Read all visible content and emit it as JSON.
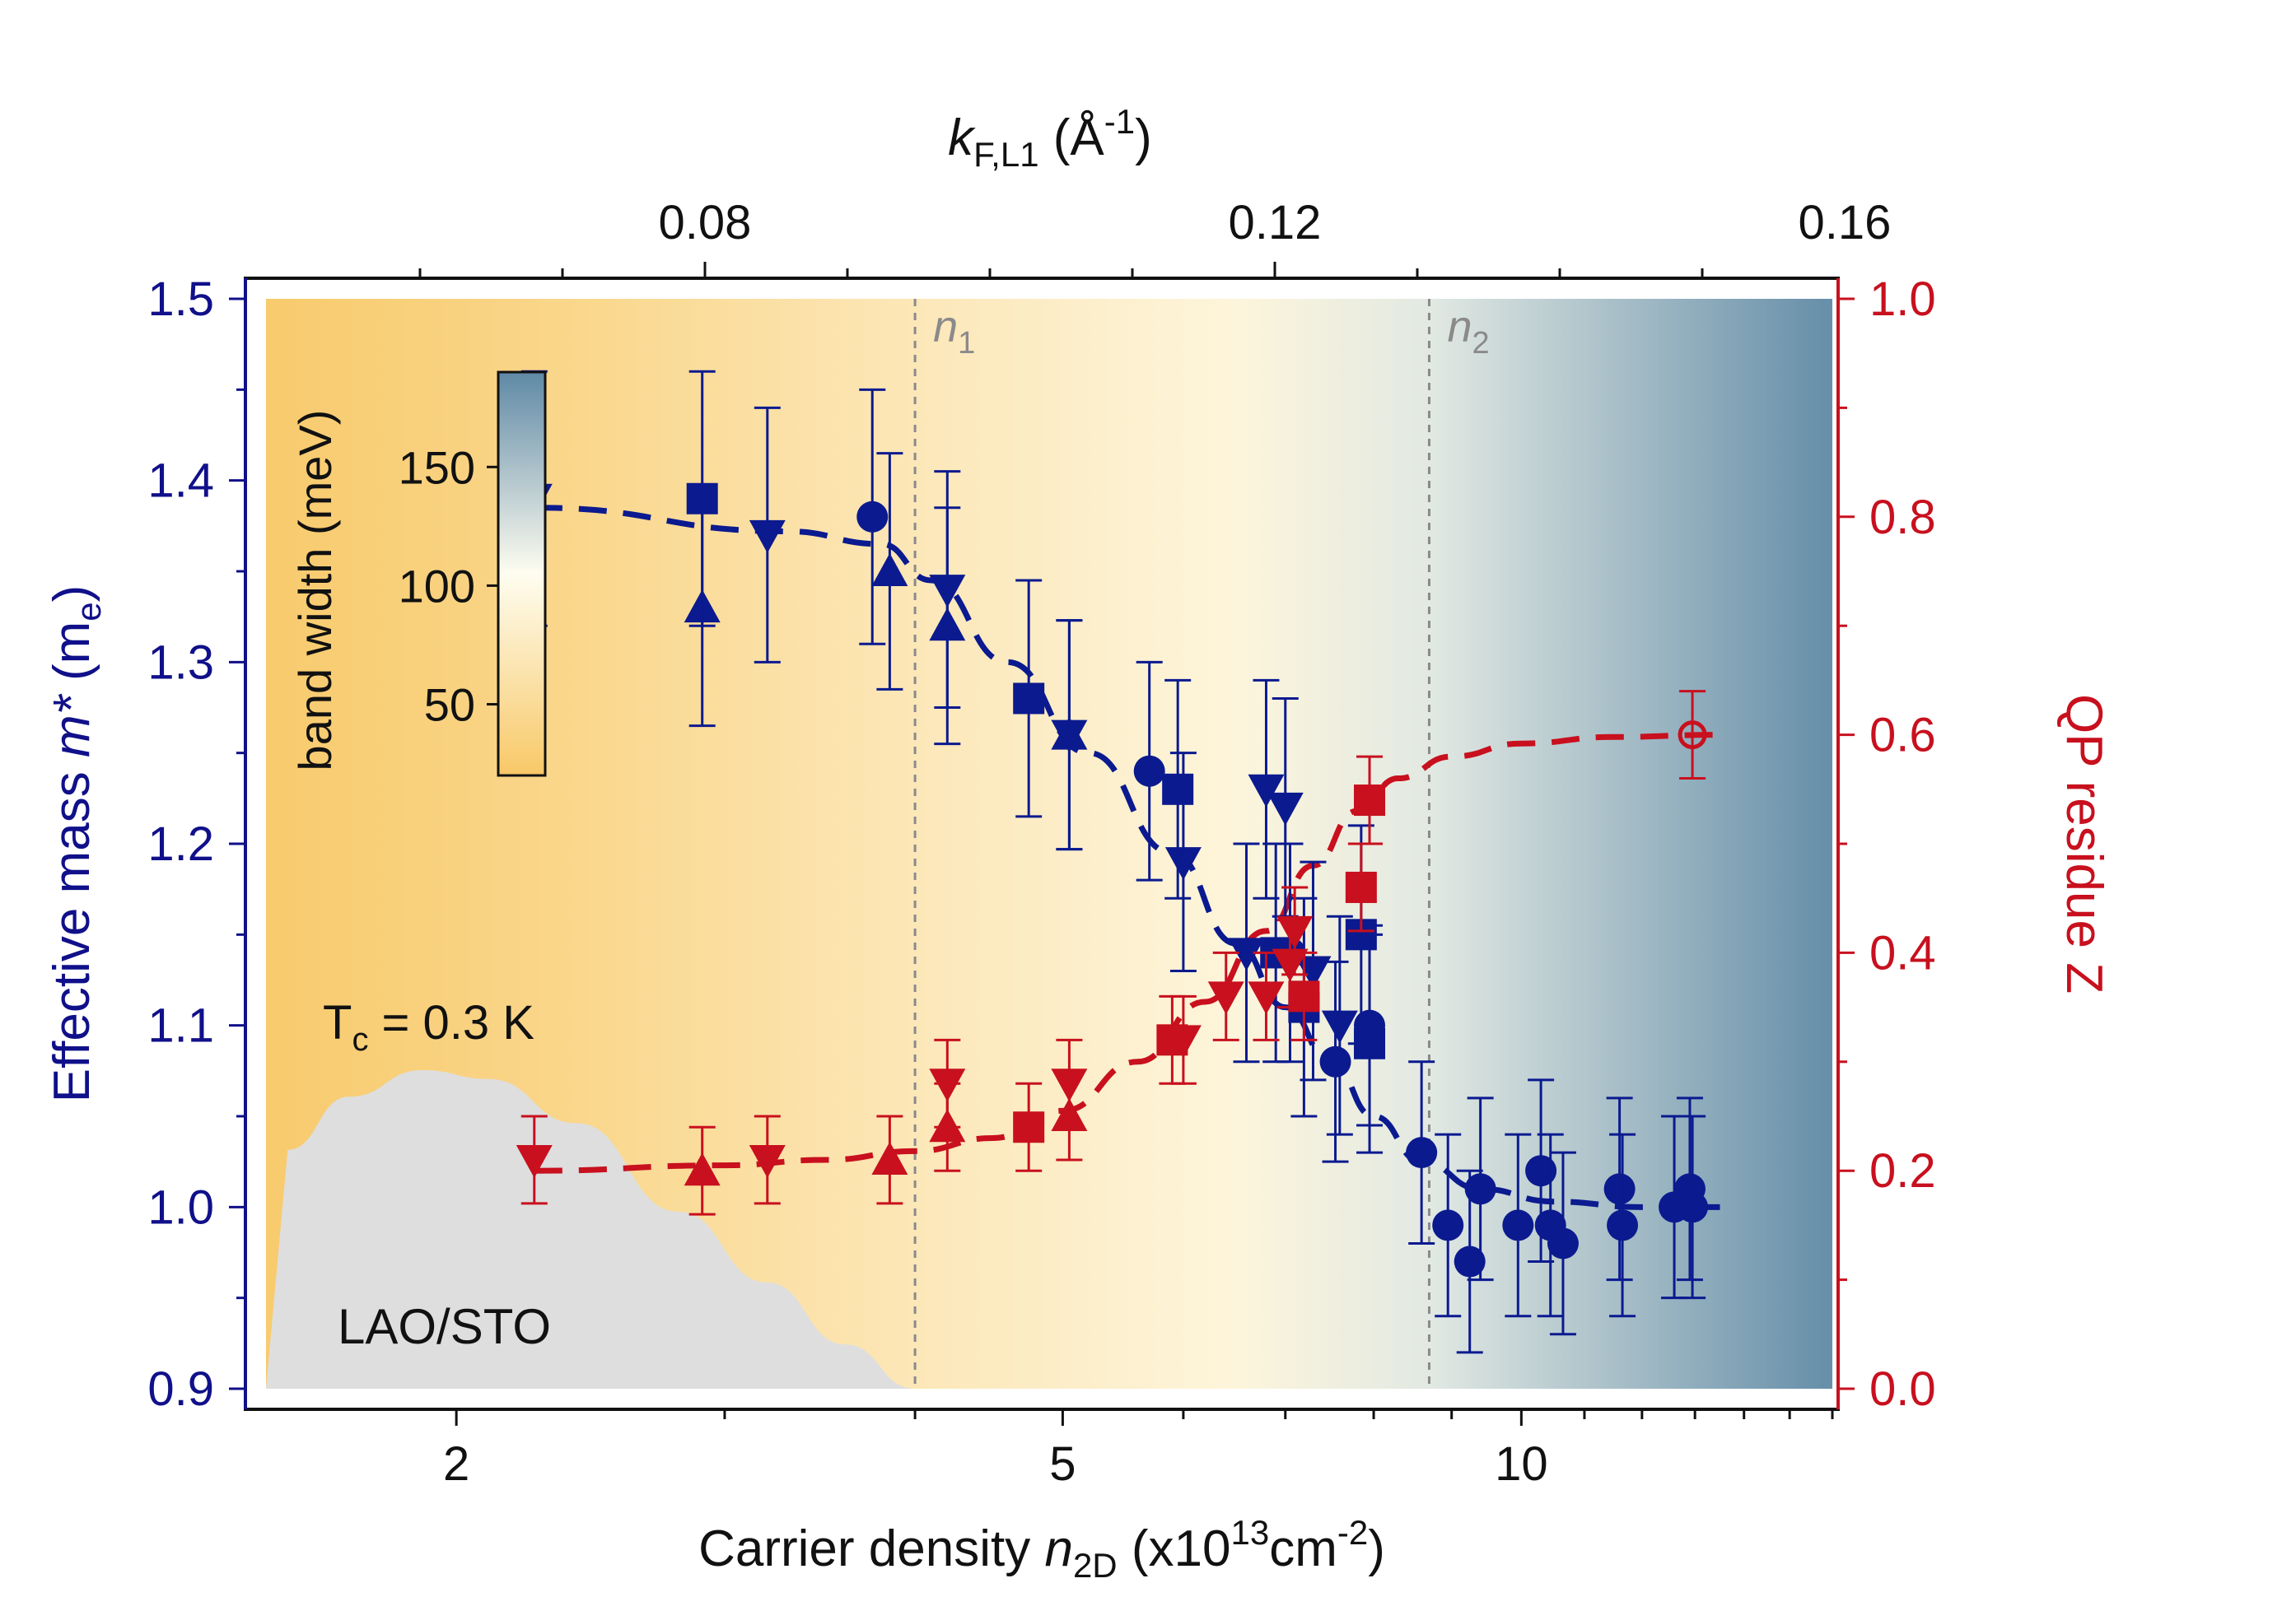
{
  "chart_data": {
    "type": "scatter",
    "title": "",
    "xlabel": {
      "prefix": "Carrier density ",
      "var": "n",
      "sub": "2D",
      "unit_a": " (x10",
      "sup": "13",
      "unit_b": "cm",
      "sup2": "-2",
      "end": ")"
    },
    "x_scale": "log",
    "xlim": [
      1.5,
      16
    ],
    "x_ticks": [
      2,
      5,
      10
    ],
    "x_ticks_labels": [
      "2",
      "5",
      "10"
    ],
    "top_axis": {
      "label": {
        "var": "k",
        "sub": "F,L1",
        "unit": " (Å",
        "sup": "-1",
        "end": ")"
      },
      "ticks": [
        0.08,
        0.12,
        0.16
      ],
      "tick_labels": [
        "0.08",
        "0.12",
        "0.16"
      ]
    },
    "ylabel_left": {
      "text": "Effective mass ",
      "var": "m*",
      "unit": " (m",
      "sub": "e",
      "end": ")"
    },
    "ylim_left": [
      0.9,
      1.5
    ],
    "y_left_ticks": [
      "0.9",
      "1.0",
      "1.1",
      "1.2",
      "1.3",
      "1.4",
      "1.5"
    ],
    "ylabel_right": "QP residue Z",
    "ylim_right": [
      0.0,
      1.0
    ],
    "y_right_ticks": [
      "0.0",
      "0.2",
      "0.4",
      "0.6",
      "0.8",
      "1.0"
    ],
    "vlines": [
      {
        "x": 4.0,
        "var": "n",
        "sub": "1"
      },
      {
        "x": 8.7,
        "var": "n",
        "sub": "2"
      }
    ],
    "annotations": {
      "tc": {
        "prefix": "T",
        "sub": "c",
        "rest": " = 0.3 K"
      },
      "sample": "LAO/STO"
    },
    "superconducting_dome": {
      "x": [
        1.55,
        1.7,
        1.9,
        2.1,
        2.4,
        2.8,
        3.2,
        3.6,
        4.0
      ],
      "tc_relative": [
        0.27,
        0.33,
        0.36,
        0.35,
        0.3,
        0.2,
        0.12,
        0.05,
        0.0
      ]
    },
    "colorbar": {
      "label": "band width (meV)",
      "ticks": [
        "50",
        "100",
        "150"
      ],
      "tick_values": [
        50,
        100,
        150
      ],
      "range": [
        20,
        190
      ],
      "colors": [
        "#f8c867",
        "#fefdf0",
        "#5f89a6"
      ]
    },
    "background_band_width": [
      {
        "x": 1.55,
        "value": 25
      },
      {
        "x": 2.5,
        "value": 45
      },
      {
        "x": 4.0,
        "value": 70
      },
      {
        "x": 6.5,
        "value": 92
      },
      {
        "x": 8.7,
        "value": 120
      },
      {
        "x": 15.8,
        "value": 185
      }
    ],
    "fits": [
      {
        "name": "mass fit",
        "axis": "left",
        "color": "#0b1a8f",
        "x": [
          2.25,
          3.3,
          3.8,
          4.1,
          4.6,
          5.2,
          5.9,
          6.5,
          7.0,
          7.5,
          8.0,
          8.6,
          9.4,
          10.5,
          12.0,
          13.5
        ],
        "y": [
          1.385,
          1.372,
          1.365,
          1.345,
          1.3,
          1.25,
          1.195,
          1.145,
          1.11,
          1.08,
          1.05,
          1.025,
          1.01,
          1.003,
          1.0,
          1.0
        ]
      },
      {
        "name": "Z fit",
        "axis": "right",
        "color": "#c8101e",
        "x": [
          2.25,
          3.0,
          3.5,
          4.0,
          4.5,
          5.0,
          5.6,
          6.2,
          6.8,
          7.3,
          7.8,
          8.3,
          9.0,
          10.0,
          11.5,
          13.5
        ],
        "y": [
          0.2,
          0.205,
          0.21,
          0.218,
          0.23,
          0.255,
          0.3,
          0.355,
          0.42,
          0.48,
          0.53,
          0.56,
          0.58,
          0.592,
          0.598,
          0.6
        ]
      }
    ],
    "series": [
      {
        "name": "m* (down triangles)",
        "axis": "left",
        "marker": "triangle-down",
        "color": "#0b1a8f",
        "points": [
          {
            "x": 2.25,
            "y": 1.39,
            "err": 0.07
          },
          {
            "x": 3.2,
            "y": 1.37,
            "err": 0.07
          },
          {
            "x": 4.2,
            "y": 1.34,
            "err": 0.065
          },
          {
            "x": 5.05,
            "y": 1.26,
            "err": 0.063
          },
          {
            "x": 6.0,
            "y": 1.19,
            "err": 0.06
          },
          {
            "x": 6.6,
            "y": 1.14,
            "err": 0.06
          },
          {
            "x": 6.8,
            "y": 1.23,
            "err": 0.06
          },
          {
            "x": 7.0,
            "y": 1.22,
            "err": 0.06
          },
          {
            "x": 7.3,
            "y": 1.13,
            "err": 0.06
          },
          {
            "x": 7.6,
            "y": 1.1,
            "err": 0.06
          }
        ]
      },
      {
        "name": "m* (up triangles)",
        "axis": "left",
        "marker": "triangle-up",
        "color": "#0b1a8f",
        "points": [
          {
            "x": 2.9,
            "y": 1.33,
            "err": 0.065
          },
          {
            "x": 3.85,
            "y": 1.35,
            "err": 0.065
          },
          {
            "x": 4.2,
            "y": 1.32,
            "err": 0.065
          },
          {
            "x": 5.05,
            "y": 1.26,
            "err": 0.063
          }
        ]
      },
      {
        "name": "m* (squares)",
        "axis": "left",
        "marker": "square",
        "color": "#0b1a8f",
        "points": [
          {
            "x": 2.9,
            "y": 1.39,
            "err": 0.07
          },
          {
            "x": 4.75,
            "y": 1.28,
            "err": 0.065
          },
          {
            "x": 5.95,
            "y": 1.23,
            "err": 0.06
          },
          {
            "x": 6.9,
            "y": 1.14,
            "err": 0.06
          },
          {
            "x": 7.2,
            "y": 1.11,
            "err": 0.06
          },
          {
            "x": 7.85,
            "y": 1.15,
            "err": 0.06
          },
          {
            "x": 7.95,
            "y": 1.09,
            "err": 0.06
          }
        ]
      },
      {
        "name": "m* (circles)",
        "axis": "left",
        "marker": "circle",
        "color": "#0b1a8f",
        "points": [
          {
            "x": 3.75,
            "y": 1.38,
            "err": 0.07
          },
          {
            "x": 5.7,
            "y": 1.24,
            "err": 0.06
          },
          {
            "x": 7.05,
            "y": 1.14,
            "err": 0.06
          },
          {
            "x": 7.55,
            "y": 1.08,
            "err": 0.055
          },
          {
            "x": 7.95,
            "y": 1.1,
            "err": 0.055
          },
          {
            "x": 8.6,
            "y": 1.03,
            "err": 0.05
          },
          {
            "x": 8.95,
            "y": 0.99,
            "err": 0.05
          },
          {
            "x": 9.25,
            "y": 0.97,
            "err": 0.05
          },
          {
            "x": 9.4,
            "y": 1.01,
            "err": 0.05
          },
          {
            "x": 9.95,
            "y": 0.99,
            "err": 0.05
          },
          {
            "x": 10.3,
            "y": 1.02,
            "err": 0.05
          },
          {
            "x": 10.45,
            "y": 0.99,
            "err": 0.05
          },
          {
            "x": 10.65,
            "y": 0.98,
            "err": 0.05
          },
          {
            "x": 11.6,
            "y": 1.01,
            "err": 0.05
          },
          {
            "x": 11.65,
            "y": 0.99,
            "err": 0.05
          },
          {
            "x": 12.6,
            "y": 1.0,
            "err": 0.05
          },
          {
            "x": 12.9,
            "y": 1.01,
            "err": 0.05
          },
          {
            "x": 12.95,
            "y": 1.0,
            "err": 0.05
          }
        ]
      },
      {
        "name": "Z (down triangles)",
        "axis": "right",
        "marker": "triangle-down",
        "color": "#c8101e",
        "points": [
          {
            "x": 2.25,
            "y": 0.21,
            "err": 0.04
          },
          {
            "x": 3.2,
            "y": 0.21,
            "err": 0.04
          },
          {
            "x": 4.2,
            "y": 0.28,
            "err": 0.04
          },
          {
            "x": 5.05,
            "y": 0.28,
            "err": 0.04
          },
          {
            "x": 6.0,
            "y": 0.32,
            "err": 0.04
          },
          {
            "x": 6.4,
            "y": 0.36,
            "err": 0.04
          },
          {
            "x": 6.8,
            "y": 0.36,
            "err": 0.04
          },
          {
            "x": 7.1,
            "y": 0.42,
            "err": 0.04
          },
          {
            "x": 7.05,
            "y": 0.39,
            "err": 0.04
          }
        ]
      },
      {
        "name": "Z (up triangles)",
        "axis": "right",
        "marker": "triangle-up",
        "color": "#c8101e",
        "points": [
          {
            "x": 2.9,
            "y": 0.2,
            "err": 0.04
          },
          {
            "x": 3.85,
            "y": 0.21,
            "err": 0.04
          },
          {
            "x": 4.2,
            "y": 0.24,
            "err": 0.04
          },
          {
            "x": 5.05,
            "y": 0.25,
            "err": 0.04
          }
        ]
      },
      {
        "name": "Z (squares)",
        "axis": "right",
        "marker": "square",
        "color": "#c8101e",
        "points": [
          {
            "x": 4.75,
            "y": 0.24,
            "err": 0.04
          },
          {
            "x": 5.9,
            "y": 0.32,
            "err": 0.04
          },
          {
            "x": 7.2,
            "y": 0.36,
            "err": 0.04
          },
          {
            "x": 7.85,
            "y": 0.46,
            "err": 0.04
          },
          {
            "x": 7.95,
            "y": 0.54,
            "err": 0.04
          }
        ]
      },
      {
        "name": "Z (open circle)",
        "axis": "right",
        "marker": "circle-open",
        "color": "#c8101e",
        "points": [
          {
            "x": 12.95,
            "y": 0.6,
            "err": 0.04
          }
        ]
      }
    ]
  }
}
